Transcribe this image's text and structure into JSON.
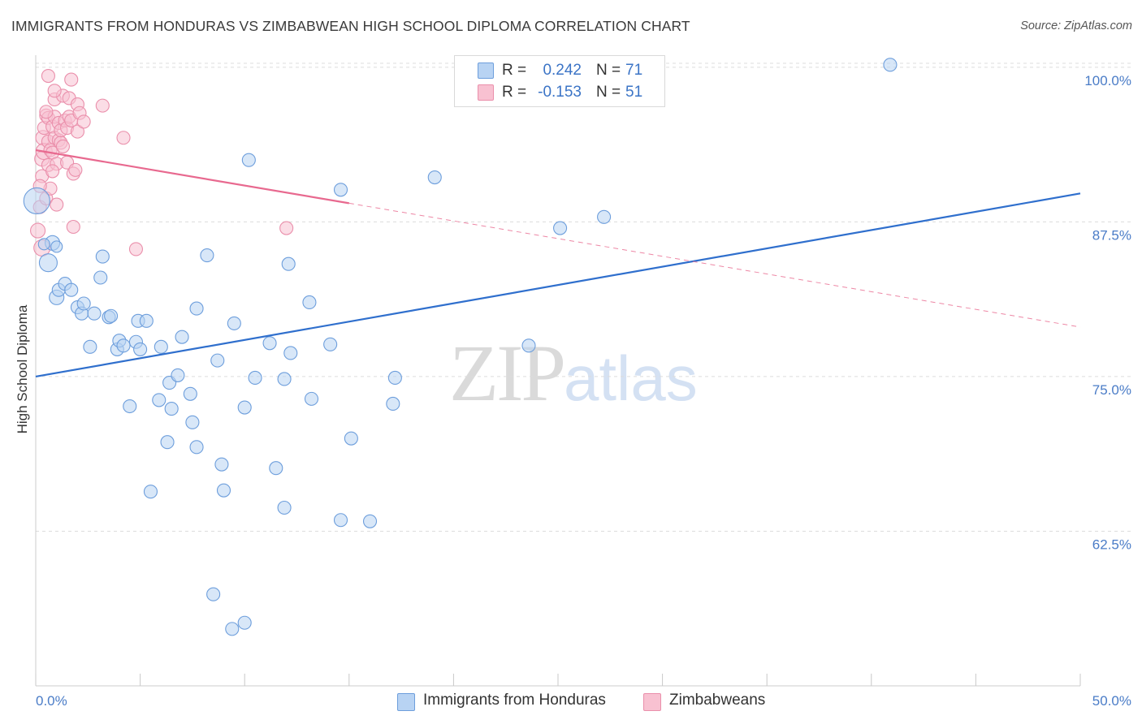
{
  "title": "IMMIGRANTS FROM HONDURAS VS ZIMBABWEAN HIGH SCHOOL DIPLOMA CORRELATION CHART",
  "source": "Source: ZipAtlas.com",
  "watermark": {
    "zip": "ZIP",
    "atlas": "atlas"
  },
  "legend_top": {
    "r_label": "R =",
    "n_label": "N =",
    "rows": [
      {
        "r": "0.242",
        "n": "71"
      },
      {
        "r": "-0.153",
        "n": "51"
      }
    ]
  },
  "legend_bottom": [
    "Immigrants from Honduras",
    "Zimbabweans"
  ],
  "colors": {
    "blue_fill": "#b8d3f3",
    "blue_stroke": "#6d9edc",
    "blue_line": "#2f6fcd",
    "pink_fill": "#f8c1d1",
    "pink_stroke": "#ea8fab",
    "pink_line": "#e8698f",
    "axis_text": "#4a7cc7",
    "grid": "#dcdcdc"
  },
  "chart_data": {
    "type": "scatter",
    "title": "IMMIGRANTS FROM HONDURAS VS ZIMBABWEAN HIGH SCHOOL DIPLOMA CORRELATION CHART",
    "xlabel": "",
    "ylabel": "High School Diploma",
    "xlim": [
      0,
      50
    ],
    "ylim": [
      50,
      101.5
    ],
    "x_tick_labels": [
      "0.0%",
      "50.0%"
    ],
    "y_ticks": [
      100,
      87.5,
      75,
      62.5
    ],
    "y_tick_labels": [
      "100.0%",
      "87.5%",
      "75.0%",
      "62.5%"
    ],
    "grid": true,
    "series": [
      {
        "name": "Immigrants from Honduras",
        "color": "blue",
        "r": 0.242,
        "n": 71,
        "trend": {
          "x": [
            0,
            50
          ],
          "y": [
            75.0,
            89.8
          ],
          "dashed_from": null
        },
        "points": [
          [
            0.05,
            89.2,
            16
          ],
          [
            0.6,
            84.2,
            11
          ],
          [
            0.8,
            85.8,
            9
          ],
          [
            1.0,
            81.4,
            9
          ],
          [
            1.1,
            82.0,
            8
          ],
          [
            1.4,
            82.5,
            8
          ],
          [
            1.7,
            82.0,
            8
          ],
          [
            2.0,
            80.6,
            8
          ],
          [
            2.2,
            80.1,
            8
          ],
          [
            2.3,
            80.9,
            8
          ],
          [
            2.6,
            77.4,
            8
          ],
          [
            2.8,
            80.1,
            8
          ],
          [
            3.1,
            83.0,
            8
          ],
          [
            3.2,
            84.7,
            8
          ],
          [
            3.5,
            79.8,
            8
          ],
          [
            3.6,
            79.9,
            8
          ],
          [
            3.9,
            77.2,
            8
          ],
          [
            4.0,
            77.9,
            8
          ],
          [
            4.2,
            77.5,
            8
          ],
          [
            4.5,
            72.6,
            8
          ],
          [
            4.8,
            77.8,
            8
          ],
          [
            4.9,
            79.5,
            8
          ],
          [
            5.0,
            77.2,
            8
          ],
          [
            5.3,
            79.5,
            8
          ],
          [
            5.5,
            65.7,
            8
          ],
          [
            5.9,
            73.1,
            8
          ],
          [
            6.0,
            77.4,
            8
          ],
          [
            6.3,
            69.7,
            8
          ],
          [
            6.4,
            74.5,
            8
          ],
          [
            6.5,
            72.4,
            8
          ],
          [
            6.8,
            75.1,
            8
          ],
          [
            7.0,
            78.2,
            8
          ],
          [
            7.4,
            73.6,
            8
          ],
          [
            7.5,
            71.3,
            8
          ],
          [
            7.7,
            69.3,
            8
          ],
          [
            7.7,
            80.5,
            8
          ],
          [
            8.2,
            84.8,
            8
          ],
          [
            8.5,
            57.4,
            8
          ],
          [
            8.7,
            76.3,
            8
          ],
          [
            8.9,
            67.9,
            8
          ],
          [
            9.0,
            65.8,
            8
          ],
          [
            9.4,
            54.6,
            8
          ],
          [
            9.5,
            79.3,
            8
          ],
          [
            10.0,
            55.1,
            8
          ],
          [
            10.0,
            72.5,
            8
          ],
          [
            10.2,
            92.5,
            8
          ],
          [
            10.5,
            74.9,
            8
          ],
          [
            11.2,
            77.7,
            8
          ],
          [
            11.5,
            67.6,
            8
          ],
          [
            11.9,
            64.4,
            8
          ],
          [
            11.9,
            74.8,
            8
          ],
          [
            12.1,
            84.1,
            8
          ],
          [
            12.2,
            76.9,
            8
          ],
          [
            13.1,
            81.0,
            8
          ],
          [
            13.2,
            73.2,
            8
          ],
          [
            14.1,
            77.6,
            8
          ],
          [
            14.6,
            63.4,
            8
          ],
          [
            14.6,
            90.1,
            8
          ],
          [
            15.1,
            70.0,
            8
          ],
          [
            16.0,
            63.3,
            8
          ],
          [
            17.1,
            72.8,
            8
          ],
          [
            17.2,
            74.9,
            8
          ],
          [
            19.1,
            91.1,
            8
          ],
          [
            23.6,
            77.5,
            8
          ],
          [
            24.1,
            100.2,
            8
          ],
          [
            25.1,
            87.0,
            8
          ],
          [
            27.2,
            87.9,
            8
          ],
          [
            28.0,
            100.3,
            8
          ],
          [
            40.9,
            100.2,
            8
          ],
          [
            1.0,
            85.5,
            7
          ],
          [
            0.4,
            85.7,
            7
          ]
        ]
      },
      {
        "name": "Zimbabweans",
        "color": "pink",
        "r": -0.153,
        "n": 51,
        "trend": {
          "x": [
            0,
            50
          ],
          "y": [
            93.3,
            79.0
          ],
          "dashed_from": 15.0
        },
        "points": [
          [
            0.1,
            86.8,
            9
          ],
          [
            0.2,
            88.7,
            8
          ],
          [
            0.3,
            85.4,
            10
          ],
          [
            0.3,
            91.2,
            8
          ],
          [
            0.3,
            92.6,
            9
          ],
          [
            0.35,
            94.3,
            9
          ],
          [
            0.4,
            93.2,
            10
          ],
          [
            0.4,
            95.1,
            8
          ],
          [
            0.5,
            89.4,
            8
          ],
          [
            0.5,
            96.1,
            8
          ],
          [
            0.6,
            92.1,
            8
          ],
          [
            0.6,
            94.0,
            8
          ],
          [
            0.6,
            95.9,
            8
          ],
          [
            0.6,
            99.3,
            8
          ],
          [
            0.7,
            90.2,
            8
          ],
          [
            0.7,
            93.3,
            8
          ],
          [
            0.8,
            93.1,
            8
          ],
          [
            0.8,
            95.2,
            8
          ],
          [
            0.9,
            94.3,
            8
          ],
          [
            0.9,
            96.0,
            8
          ],
          [
            0.9,
            97.4,
            8
          ],
          [
            1.0,
            88.9,
            8
          ],
          [
            1.0,
            92.2,
            8
          ],
          [
            1.1,
            94.1,
            8
          ],
          [
            1.1,
            95.5,
            8
          ],
          [
            1.2,
            93.9,
            8
          ],
          [
            1.2,
            94.9,
            8
          ],
          [
            1.3,
            97.7,
            8
          ],
          [
            1.4,
            95.7,
            8
          ],
          [
            1.5,
            92.3,
            8
          ],
          [
            1.5,
            95.1,
            8
          ],
          [
            1.6,
            96.0,
            8
          ],
          [
            1.6,
            97.5,
            8
          ],
          [
            1.7,
            95.7,
            8
          ],
          [
            1.8,
            87.1,
            8
          ],
          [
            1.8,
            91.4,
            8
          ],
          [
            1.9,
            91.7,
            8
          ],
          [
            2.0,
            94.8,
            8
          ],
          [
            2.0,
            97.0,
            8
          ],
          [
            2.1,
            96.3,
            8
          ],
          [
            3.2,
            96.9,
            8
          ],
          [
            4.2,
            94.3,
            8
          ],
          [
            4.8,
            85.3,
            8
          ],
          [
            12.0,
            87.0,
            8
          ],
          [
            0.2,
            90.4,
            8
          ],
          [
            0.8,
            91.6,
            8
          ],
          [
            1.3,
            93.6,
            8
          ],
          [
            0.5,
            96.4,
            8
          ],
          [
            1.7,
            99.0,
            8
          ],
          [
            0.9,
            98.1,
            8
          ],
          [
            2.3,
            95.6,
            8
          ]
        ]
      }
    ]
  }
}
